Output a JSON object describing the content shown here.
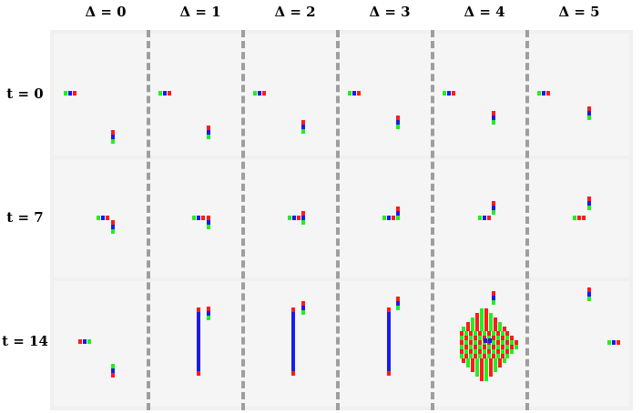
{
  "columns": [
    "Δ = 0",
    "Δ = 1",
    "Δ = 2",
    "Δ = 3",
    "Δ = 4",
    "Δ = 5"
  ],
  "rows": [
    "t = 0",
    "t = 7",
    "t = 14"
  ],
  "colors": {
    "red": "#ff1a1a",
    "green": "#22ee22",
    "blue": "#1a1aee",
    "cell_bg": "#f5f5f5",
    "frame": "#e6e6e6",
    "dash": "#9e9e9e"
  }
}
